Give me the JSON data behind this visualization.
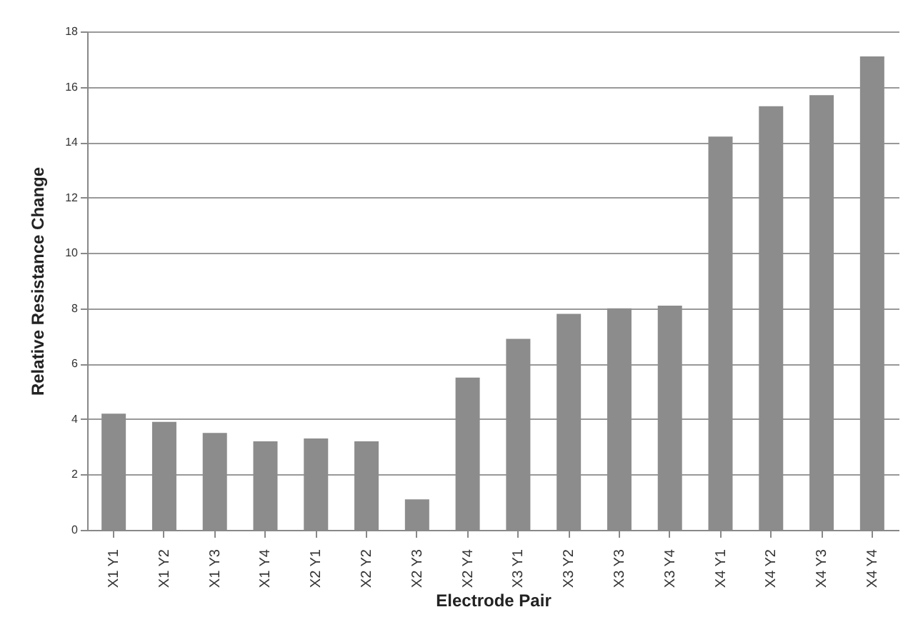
{
  "chart_data": {
    "type": "bar",
    "xlabel": "Electrode Pair",
    "ylabel": "Relative Resistance Change",
    "categories": [
      "X1 Y1",
      "X1 Y2",
      "X1 Y3",
      "X1 Y4",
      "X2 Y1",
      "X2 Y2",
      "X2 Y3",
      "X2 Y4",
      "X3 Y1",
      "X3 Y2",
      "X3 Y3",
      "X3 Y4",
      "X4 Y1",
      "X4 Y2",
      "X4 Y3",
      "X4 Y4"
    ],
    "values": [
      4.2,
      3.9,
      3.5,
      3.2,
      3.3,
      3.2,
      1.1,
      5.5,
      6.9,
      7.8,
      8.0,
      8.1,
      14.2,
      15.3,
      15.7,
      17.1
    ],
    "color": "#8c8c8c",
    "ylim": [
      0,
      18
    ],
    "yticks": [
      0,
      2,
      4,
      6,
      8,
      10,
      12,
      14,
      16,
      18
    ],
    "grid": "y"
  }
}
